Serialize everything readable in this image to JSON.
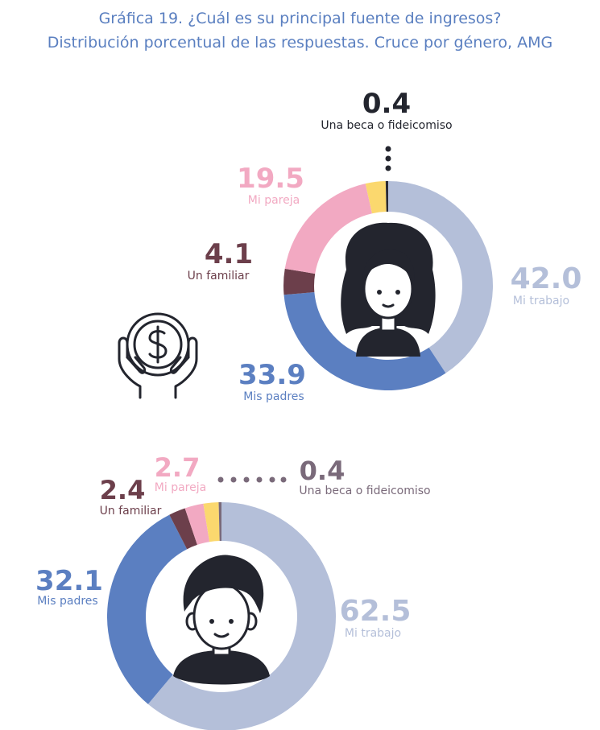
{
  "title_line1": "Gráfica 19. ¿Cuál es su principal fuente de ingresos?",
  "title_line2": "Distribución porcentual de las respuestas. Cruce por género, AMG",
  "chart_data": [
    {
      "type": "pie",
      "variant": "donut",
      "group": "mujeres",
      "slices": [
        {
          "label": "Mi trabajo",
          "value": 42.0,
          "display": "42.0",
          "color": "#b4bfd9"
        },
        {
          "label": "Mis padres",
          "value": 33.9,
          "display": "33.9",
          "color": "#5b7fc1"
        },
        {
          "label": "Un familiar",
          "value": 4.1,
          "display": "4.1",
          "color": "#6c3f4b"
        },
        {
          "label": "Mi pareja",
          "value": 19.5,
          "display": "19.5",
          "color": "#f2a9c2"
        },
        {
          "label": "",
          "value": 3.2,
          "display": "",
          "color": "#fbd86e"
        },
        {
          "label": "Una beca o fideicomiso",
          "value": 0.4,
          "display": "0.4",
          "color": "#2a2a35"
        }
      ]
    },
    {
      "type": "pie",
      "variant": "donut",
      "group": "hombres",
      "slices": [
        {
          "label": "Mi trabajo",
          "value": 62.5,
          "display": "62.5",
          "color": "#b4bfd9"
        },
        {
          "label": "Mis padres",
          "value": 32.1,
          "display": "32.1",
          "color": "#5b7fc1"
        },
        {
          "label": "Un familiar",
          "value": 2.4,
          "display": "2.4",
          "color": "#6c3f4b"
        },
        {
          "label": "Mi pareja",
          "value": 2.7,
          "display": "2.7",
          "color": "#f2a9c2"
        },
        {
          "label": "",
          "value": 2.2,
          "display": "",
          "color": "#fbd86e"
        },
        {
          "label": "Una beca o fideicomiso",
          "value": 0.4,
          "display": "0.4",
          "color": "#7a6a7a"
        }
      ]
    }
  ],
  "icons": {
    "money": "money-hands-icon",
    "woman": "woman-avatar-icon",
    "man": "man-avatar-icon"
  }
}
